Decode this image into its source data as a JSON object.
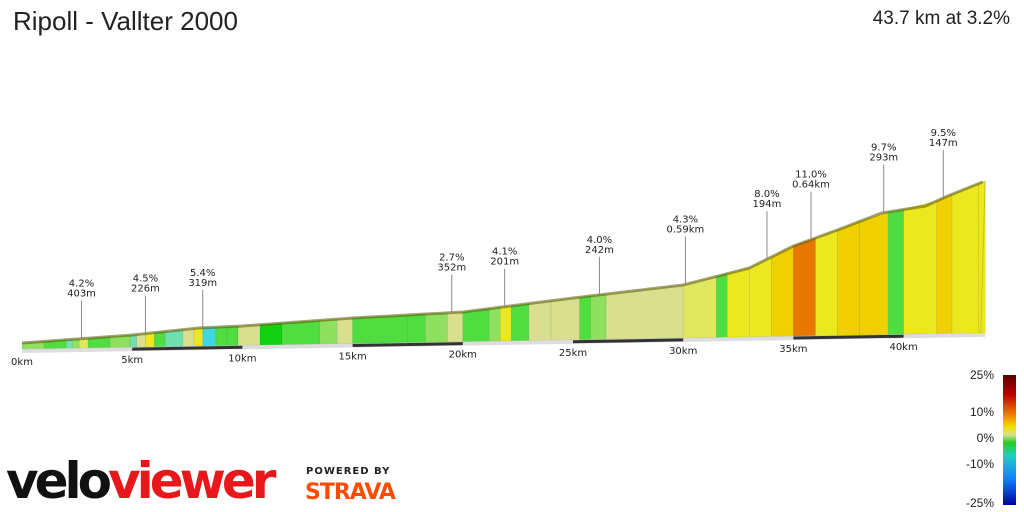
{
  "header": {
    "title": "Ripoll - Vallter 2000",
    "summary": "43.7 km at 3.2%"
  },
  "profile": {
    "total_km": 43.7,
    "ticks": [
      "0km",
      "5km",
      "10km",
      "15km",
      "20km",
      "25km",
      "30km",
      "35km",
      "40km"
    ],
    "segments": [
      [
        0,
        2
      ],
      [
        1,
        1.5
      ],
      [
        2,
        -1
      ],
      [
        2.3,
        2
      ],
      [
        2.6,
        4.5
      ],
      [
        3,
        1.5
      ],
      [
        4,
        2.5
      ],
      [
        4.9,
        -1
      ],
      [
        5.2,
        3
      ],
      [
        5.6,
        5
      ],
      [
        6,
        1.5
      ],
      [
        6.5,
        -0.5
      ],
      [
        7.3,
        3
      ],
      [
        7.8,
        6
      ],
      [
        8.2,
        -3
      ],
      [
        8.8,
        1
      ],
      [
        9.3,
        1.5
      ],
      [
        9.8,
        3.5
      ],
      [
        10.8,
        0.8
      ],
      [
        11.8,
        1.5
      ],
      [
        13.5,
        2
      ],
      [
        14.3,
        3.5
      ],
      [
        15,
        1.5
      ],
      [
        17.5,
        1
      ],
      [
        18.3,
        2
      ],
      [
        19.3,
        3.5
      ],
      [
        20,
        1
      ],
      [
        21.2,
        2
      ],
      [
        21.7,
        5
      ],
      [
        22.2,
        1.5
      ],
      [
        23,
        3
      ],
      [
        24,
        3.5
      ],
      [
        25.3,
        1
      ],
      [
        25.8,
        2
      ],
      [
        26.5,
        3.8
      ],
      [
        30,
        4.2
      ],
      [
        31.5,
        1.5
      ],
      [
        32,
        5
      ],
      [
        33,
        6.5
      ],
      [
        34,
        7.5
      ],
      [
        35,
        11
      ],
      [
        36,
        6.5
      ],
      [
        37,
        7.5
      ],
      [
        38,
        8.2
      ],
      [
        39.3,
        1.5
      ],
      [
        40,
        5
      ],
      [
        41.5,
        7.5
      ],
      [
        42.2,
        6.5
      ],
      [
        43.4,
        5.5
      ]
    ],
    "annotations": [
      {
        "km": 2.7,
        "grade": "4.2%",
        "len": "403m"
      },
      {
        "km": 5.6,
        "grade": "4.5%",
        "len": "226m"
      },
      {
        "km": 8.2,
        "grade": "5.4%",
        "len": "319m"
      },
      {
        "km": 19.5,
        "grade": "2.7%",
        "len": "352m"
      },
      {
        "km": 21.9,
        "grade": "4.1%",
        "len": "201m"
      },
      {
        "km": 26.2,
        "grade": "4.0%",
        "len": "242m"
      },
      {
        "km": 30.1,
        "grade": "4.3%",
        "len": "0.59km"
      },
      {
        "km": 33.8,
        "grade": "8.0%",
        "len": "194m"
      },
      {
        "km": 35.8,
        "grade": "11.0%",
        "len": "0.64km"
      },
      {
        "km": 39.1,
        "grade": "9.7%",
        "len": "293m"
      },
      {
        "km": 41.8,
        "grade": "9.5%",
        "len": "147m"
      }
    ]
  },
  "legend": {
    "labels": [
      "25%",
      "10%",
      "0%",
      "-10%",
      "-25%"
    ]
  },
  "branding": {
    "logo_velo": "velo",
    "logo_viewer": "viewer",
    "powered_by": "POWERED BY",
    "strava": "STRAVA"
  }
}
